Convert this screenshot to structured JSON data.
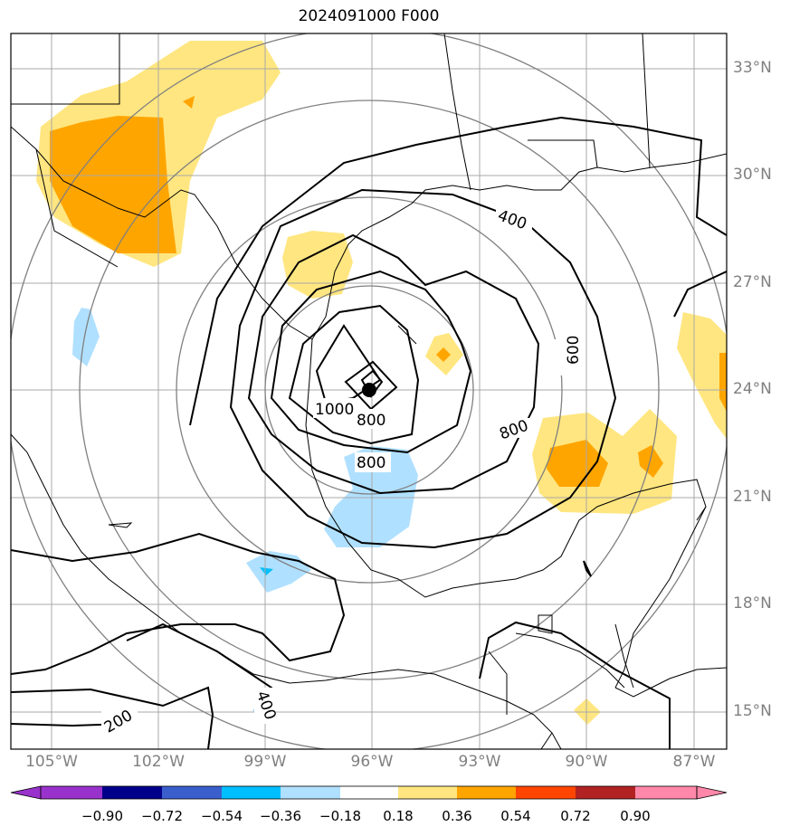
{
  "title": "2024091000 F000",
  "lat_labels": [
    "33°N",
    "30°N",
    "27°N",
    "24°N",
    "21°N",
    "18°N",
    "15°N"
  ],
  "lon_labels": [
    "105°W",
    "102°W",
    "99°W",
    "96°W",
    "93°W",
    "90°W",
    "87°W"
  ],
  "contour_labels": [
    "1000",
    "800",
    "800",
    "800",
    "600",
    "400",
    "400",
    "200"
  ],
  "colorbar": {
    "ticks": [
      "−0.90",
      "−0.72",
      "−0.54",
      "−0.36",
      "−0.18",
      "0.18",
      "0.36",
      "0.54",
      "0.72",
      "0.90"
    ],
    "colors": [
      "#9932cc",
      "#00008b",
      "#3a5fcd",
      "#00bfff",
      "#b0e0ff",
      "#ffffff",
      "#ffe680",
      "#ffa500",
      "#ff4500",
      "#b22222",
      "#ff88aa"
    ]
  },
  "storm_center": {
    "lat": 24,
    "lon": -96
  },
  "icons": {
    "storm_marker": "hurricane-center-icon"
  }
}
